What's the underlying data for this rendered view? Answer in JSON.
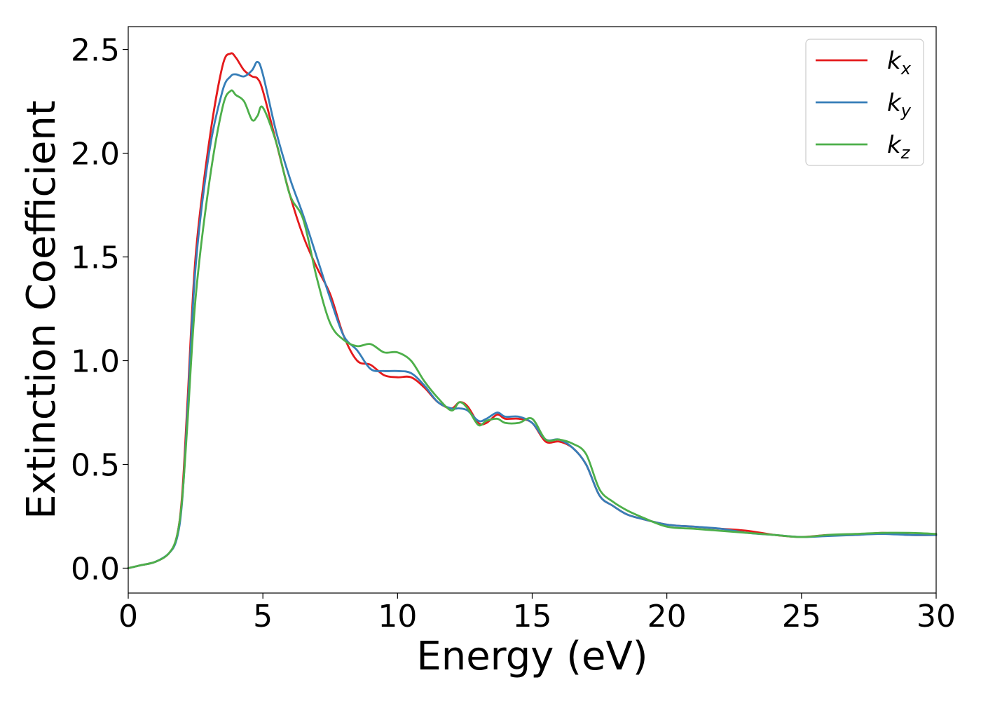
{
  "chart_data": {
    "type": "line",
    "xlabel": "Energy (eV)",
    "ylabel": "Extinction Coefficient",
    "xlim": [
      0,
      30
    ],
    "ylim": [
      -0.12,
      2.61
    ],
    "xticks": [
      "0",
      "5",
      "10",
      "15",
      "20",
      "25",
      "30"
    ],
    "yticks": [
      "0.0",
      "0.5",
      "1.0",
      "1.5",
      "2.0",
      "2.5"
    ],
    "grid": false,
    "legend_position": "top-right",
    "x": [
      0,
      0.5,
      1,
      1.5,
      1.8,
      2,
      2.2,
      2.5,
      3,
      3.5,
      3.8,
      4,
      4.3,
      4.6,
      4.8,
      5,
      5.5,
      6,
      6.5,
      7,
      7.5,
      8,
      8.5,
      9,
      9.5,
      10,
      10.5,
      11,
      11.5,
      12,
      12.3,
      12.6,
      13,
      13.3,
      13.7,
      14,
      14.5,
      15,
      15.5,
      16,
      16.5,
      17,
      17.5,
      18,
      18.5,
      19,
      20,
      21,
      22,
      23,
      24,
      25,
      26,
      27,
      28,
      29,
      30
    ],
    "series": [
      {
        "name": "k_x",
        "legend_base": "k",
        "legend_sub": "x",
        "color": "#e41a1c",
        "values": [
          0.0,
          0.015,
          0.03,
          0.07,
          0.15,
          0.35,
          0.8,
          1.5,
          2.05,
          2.42,
          2.48,
          2.46,
          2.4,
          2.37,
          2.36,
          2.3,
          2.05,
          1.8,
          1.6,
          1.45,
          1.32,
          1.12,
          1.0,
          0.98,
          0.93,
          0.92,
          0.92,
          0.87,
          0.8,
          0.77,
          0.8,
          0.78,
          0.7,
          0.7,
          0.74,
          0.72,
          0.72,
          0.7,
          0.61,
          0.61,
          0.58,
          0.5,
          0.35,
          0.3,
          0.26,
          0.24,
          0.21,
          0.2,
          0.19,
          0.18,
          0.16,
          0.15,
          0.16,
          0.16,
          0.17,
          0.16,
          0.16
        ]
      },
      {
        "name": "k_y",
        "legend_base": "k",
        "legend_sub": "y",
        "color": "#377eb8",
        "values": [
          0.0,
          0.015,
          0.03,
          0.07,
          0.14,
          0.32,
          0.75,
          1.45,
          2.0,
          2.3,
          2.37,
          2.38,
          2.37,
          2.4,
          2.44,
          2.38,
          2.1,
          1.88,
          1.7,
          1.5,
          1.3,
          1.12,
          1.05,
          0.96,
          0.95,
          0.95,
          0.94,
          0.88,
          0.8,
          0.77,
          0.77,
          0.76,
          0.71,
          0.72,
          0.75,
          0.73,
          0.73,
          0.7,
          0.62,
          0.62,
          0.58,
          0.5,
          0.35,
          0.3,
          0.26,
          0.24,
          0.21,
          0.2,
          0.19,
          0.17,
          0.16,
          0.15,
          0.155,
          0.16,
          0.165,
          0.16,
          0.16
        ]
      },
      {
        "name": "k_z",
        "legend_base": "k",
        "legend_sub": "z",
        "color": "#4daf4a",
        "values": [
          0.0,
          0.015,
          0.03,
          0.07,
          0.15,
          0.33,
          0.7,
          1.3,
          1.85,
          2.22,
          2.3,
          2.28,
          2.25,
          2.16,
          2.18,
          2.22,
          2.05,
          1.8,
          1.68,
          1.4,
          1.18,
          1.1,
          1.07,
          1.08,
          1.04,
          1.04,
          1.0,
          0.9,
          0.82,
          0.76,
          0.8,
          0.77,
          0.69,
          0.71,
          0.72,
          0.7,
          0.7,
          0.72,
          0.62,
          0.62,
          0.6,
          0.55,
          0.38,
          0.32,
          0.28,
          0.25,
          0.2,
          0.19,
          0.18,
          0.17,
          0.16,
          0.15,
          0.16,
          0.165,
          0.17,
          0.17,
          0.165
        ]
      }
    ]
  }
}
